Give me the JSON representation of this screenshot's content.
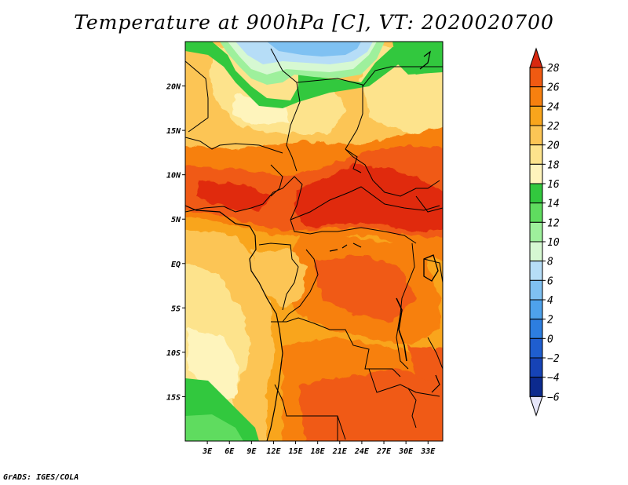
{
  "title": "Temperature at 900hPa [C], VT: 2020020700",
  "credit": "GrADS: IGES/COLA",
  "map": {
    "region": "Central Africa",
    "lon_range": [
      0,
      35
    ],
    "lat_range": [
      -20,
      25
    ],
    "lat_ticks": [
      {
        "value": 20,
        "label": "20N"
      },
      {
        "value": 15,
        "label": "15N"
      },
      {
        "value": 10,
        "label": "10N"
      },
      {
        "value": 5,
        "label": "5N"
      },
      {
        "value": 0,
        "label": "EQ"
      },
      {
        "value": -5,
        "label": "5S"
      },
      {
        "value": -10,
        "label": "10S"
      },
      {
        "value": -15,
        "label": "15S"
      }
    ],
    "lon_ticks": [
      {
        "value": 3,
        "label": "3E"
      },
      {
        "value": 6,
        "label": "6E"
      },
      {
        "value": 9,
        "label": "9E"
      },
      {
        "value": 12,
        "label": "12E"
      },
      {
        "value": 15,
        "label": "15E"
      },
      {
        "value": 18,
        "label": "18E"
      },
      {
        "value": 21,
        "label": "21E"
      },
      {
        "value": 24,
        "label": "24E"
      },
      {
        "value": 27,
        "label": "27E"
      },
      {
        "value": 30,
        "label": "30E"
      },
      {
        "value": 33,
        "label": "33E"
      }
    ]
  },
  "colorbar": {
    "labels": [
      "28",
      "26",
      "24",
      "22",
      "20",
      "18",
      "16",
      "14",
      "12",
      "10",
      "8",
      "6",
      "4",
      "2",
      "0",
      "−2",
      "−4",
      "−6"
    ],
    "colors": [
      "#e02a10",
      "#f05a12",
      "#f7800f",
      "#f9a51c",
      "#fcc555",
      "#fde38c",
      "#fef4bc",
      "#32c83e",
      "#5fdc5f",
      "#9ef09c",
      "#d6f8d2",
      "#b6ddf7",
      "#7fc1f2",
      "#4ea2ec",
      "#2d7ee0",
      "#1f5ecf",
      "#1643b6",
      "#0c2a8e",
      "#081a66"
    ],
    "top_arrow_color": "#d82810",
    "bottom_arrow_color": "#e6e6fa"
  }
}
